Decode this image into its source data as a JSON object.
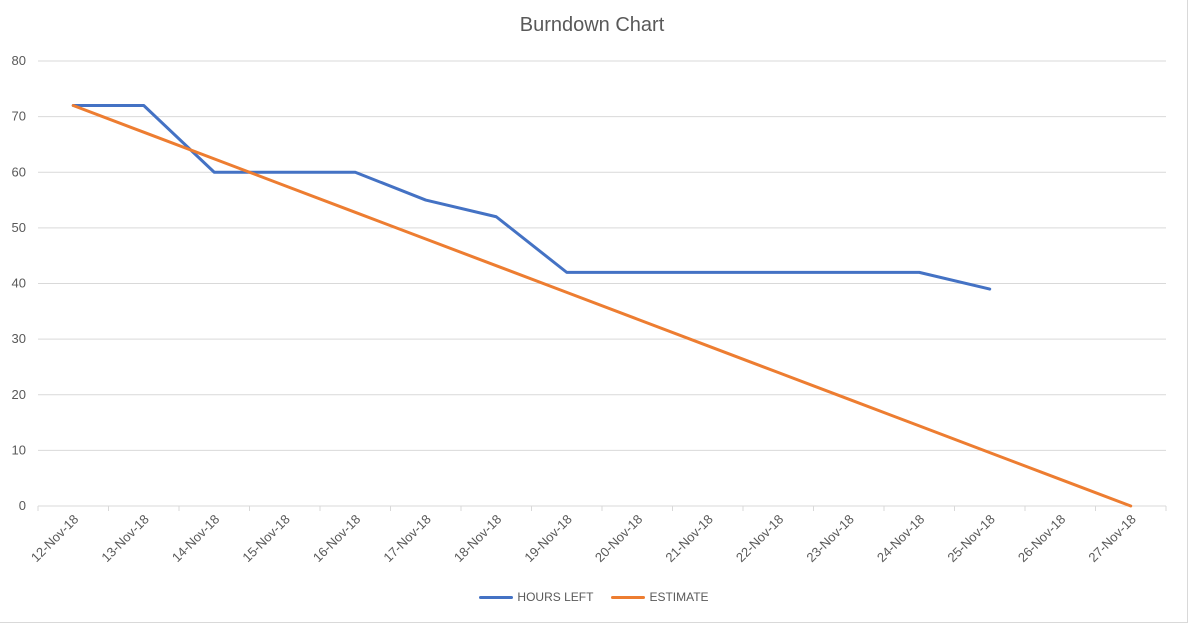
{
  "chart_data": {
    "type": "line",
    "title": "Burndown Chart",
    "xlabel": "",
    "ylabel": "",
    "ylim": [
      0,
      80
    ],
    "yticks": [
      "0",
      "10",
      "20",
      "30",
      "40",
      "50",
      "60",
      "70",
      "80"
    ],
    "categories": [
      "12-Nov-18",
      "13-Nov-18",
      "14-Nov-18",
      "15-Nov-18",
      "16-Nov-18",
      "17-Nov-18",
      "18-Nov-18",
      "19-Nov-18",
      "20-Nov-18",
      "21-Nov-18",
      "22-Nov-18",
      "23-Nov-18",
      "24-Nov-18",
      "25-Nov-18",
      "26-Nov-18",
      "27-Nov-18"
    ],
    "series": [
      {
        "name": "HOURS LEFT",
        "color": "#4472c4",
        "values": [
          72,
          72,
          60,
          60,
          60,
          55,
          52,
          42,
          42,
          42,
          42,
          42,
          42,
          39,
          null,
          null
        ]
      },
      {
        "name": "ESTIMATE",
        "color": "#ed7d31",
        "values": [
          72,
          67.2,
          62.4,
          57.6,
          52.8,
          48,
          43.2,
          38.4,
          33.6,
          28.8,
          24,
          19.2,
          14.4,
          9.6,
          4.8,
          0
        ]
      }
    ],
    "grid": true,
    "legend_position": "bottom"
  }
}
